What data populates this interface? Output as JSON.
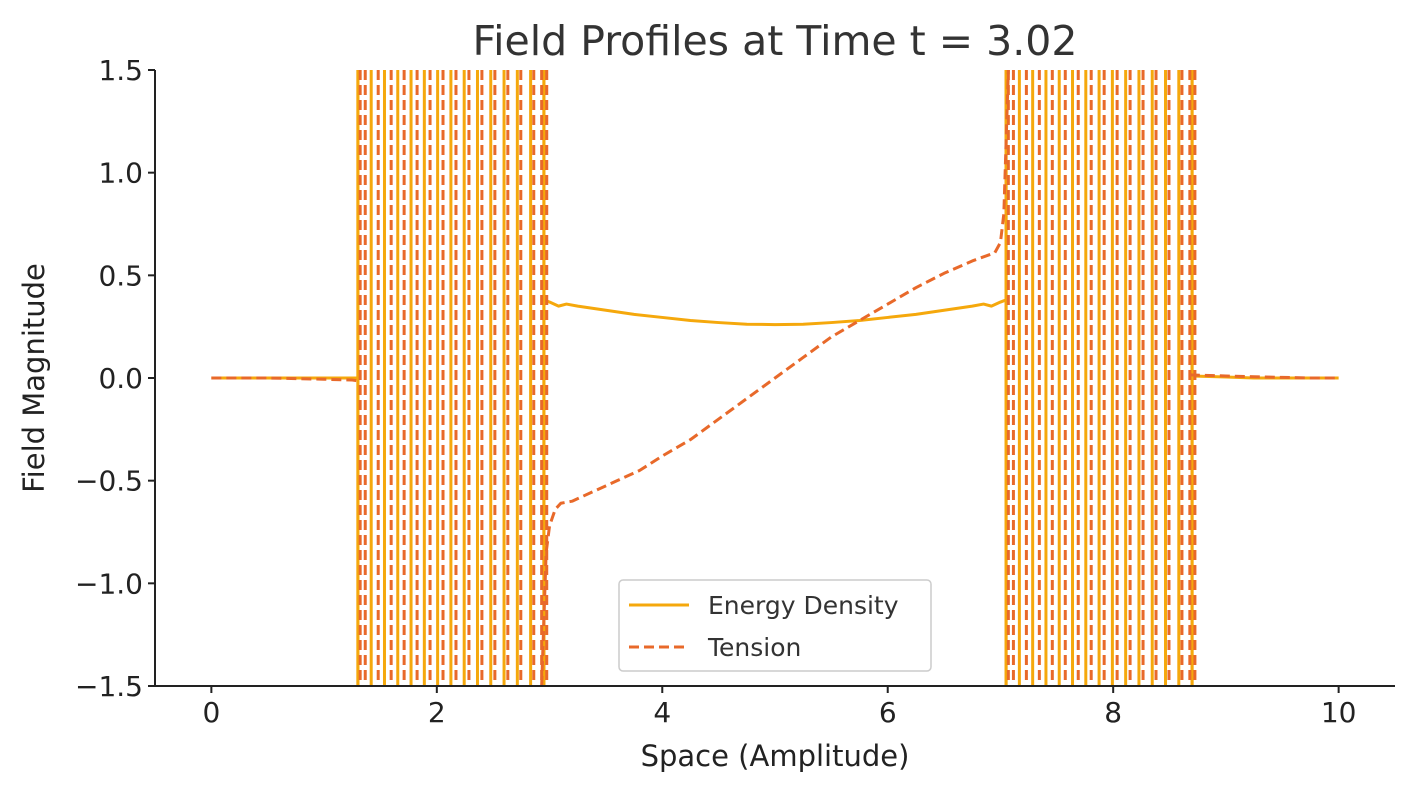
{
  "chart_data": {
    "type": "line",
    "title": "Field Profiles at Time t = 3.02",
    "xlabel": "Space (Amplitude)",
    "ylabel": "Field Magnitude",
    "xlim": [
      -0.5,
      10.5
    ],
    "ylim": [
      -1.5,
      1.5
    ],
    "xticks": [
      0,
      2,
      4,
      6,
      8,
      10
    ],
    "xtick_labels": [
      "0",
      "2",
      "4",
      "6",
      "8",
      "10"
    ],
    "yticks": [
      -1.5,
      -1.0,
      -0.5,
      0.0,
      0.5,
      1.0,
      1.5
    ],
    "ytick_labels": [
      "−1.5",
      "−1.0",
      "−0.5",
      "0.0",
      "0.5",
      "1.0",
      "1.5"
    ],
    "grid": false,
    "legend_position": "bottom-center",
    "series": [
      {
        "name": "Energy Density",
        "color": "#F5A80C",
        "style": "solid",
        "segments": [
          {
            "x": [
              0,
              0.25,
              0.5,
              0.75,
              1.0,
              1.25,
              1.3
            ],
            "y": [
              0,
              0,
              0,
              0,
              0,
              0,
              0
            ]
          },
          {
            "x": [
              2.95,
              3.0,
              3.08,
              3.15,
              3.25,
              3.5,
              3.75,
              4.0,
              4.25,
              4.5,
              4.75,
              5.0,
              5.25,
              5.5,
              5.75,
              6.0,
              6.25,
              6.5,
              6.75,
              6.85,
              6.92,
              7.0,
              7.05
            ],
            "y": [
              0.38,
              0.37,
              0.35,
              0.36,
              0.35,
              0.33,
              0.31,
              0.295,
              0.28,
              0.27,
              0.262,
              0.26,
              0.262,
              0.27,
              0.28,
              0.295,
              0.31,
              0.33,
              0.35,
              0.36,
              0.35,
              0.37,
              0.38
            ]
          },
          {
            "x": [
              8.7,
              9.0,
              9.25,
              9.5,
              9.75,
              10.0
            ],
            "y": [
              0.01,
              0.005,
              0,
              0,
              0,
              0
            ]
          }
        ],
        "oscillation_bands": [
          [
            1.3,
            2.95
          ],
          [
            7.05,
            8.7
          ]
        ]
      },
      {
        "name": "Tension",
        "color": "#E8692A",
        "style": "dashed",
        "segments": [
          {
            "x": [
              0,
              0.25,
              0.5,
              0.75,
              1.0,
              1.25,
              1.32
            ],
            "y": [
              0,
              0,
              0,
              -0.003,
              -0.006,
              -0.01,
              -0.015
            ]
          },
          {
            "x": [
              2.93,
              2.97,
              3.0,
              3.05,
              3.1,
              3.2,
              3.4,
              3.6,
              3.8,
              4.0,
              4.25,
              4.5,
              4.75,
              5.0,
              5.25,
              5.5,
              5.75,
              6.0,
              6.25,
              6.5,
              6.75,
              6.9,
              6.95,
              7.0,
              7.03,
              7.07
            ],
            "y": [
              -1.5,
              -0.85,
              -0.72,
              -0.64,
              -0.61,
              -0.6,
              -0.55,
              -0.5,
              -0.45,
              -0.38,
              -0.3,
              -0.2,
              -0.1,
              0.0,
              0.1,
              0.2,
              0.28,
              0.36,
              0.44,
              0.51,
              0.57,
              0.6,
              0.61,
              0.66,
              0.8,
              1.5
            ]
          },
          {
            "x": [
              8.68,
              9.0,
              9.25,
              9.5,
              9.75,
              10.0
            ],
            "y": [
              0.015,
              0.01,
              0.006,
              0.003,
              0,
              0
            ]
          }
        ],
        "oscillation_bands": [
          [
            1.32,
            2.93
          ],
          [
            7.07,
            8.68
          ]
        ]
      }
    ]
  }
}
